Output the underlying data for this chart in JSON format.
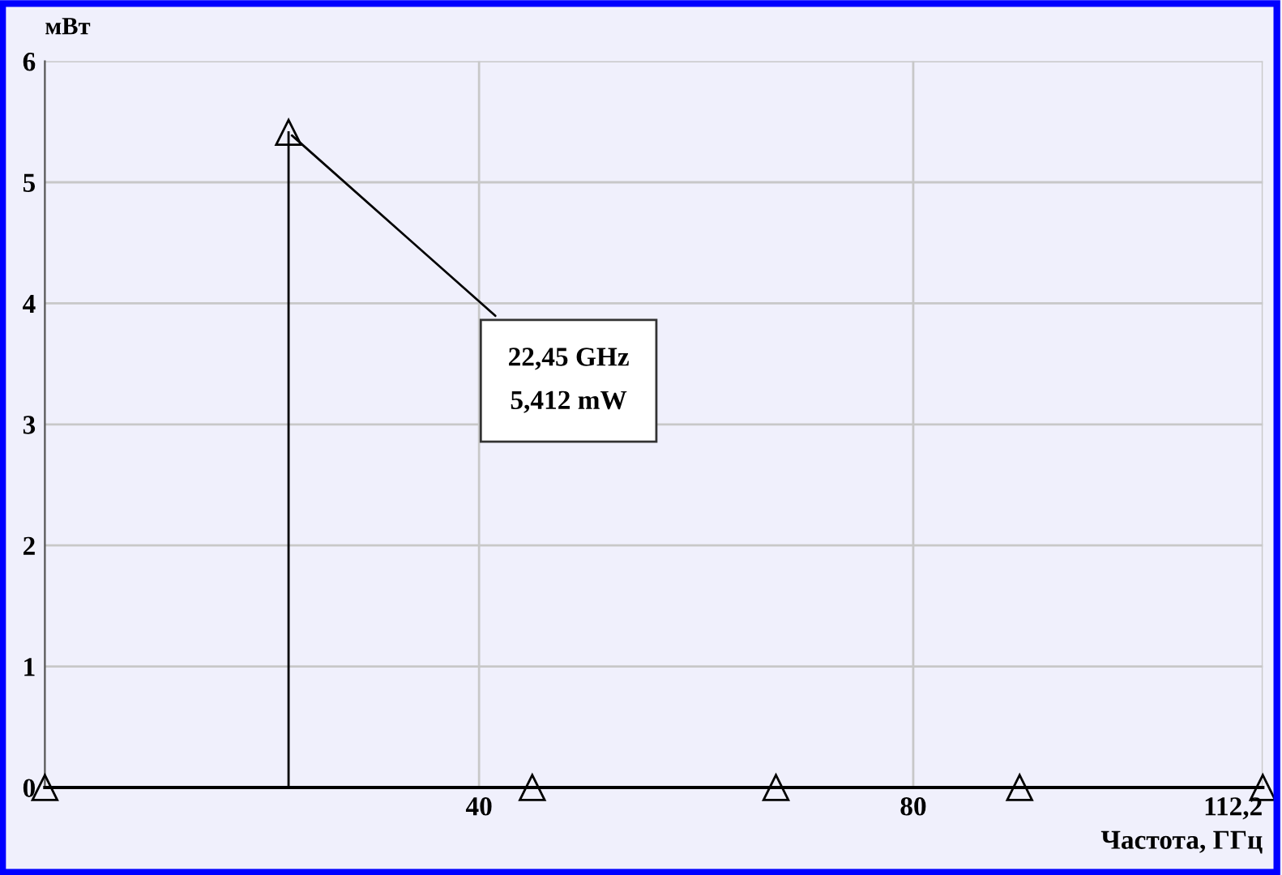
{
  "chart_data": {
    "type": "lollipop",
    "x": [
      0,
      22.45,
      44.9,
      67.35,
      89.8,
      112.2
    ],
    "values": [
      0,
      5.412,
      0,
      0,
      0,
      0
    ],
    "color": "#000000",
    "marker": "triangle",
    "xlim": [
      0,
      112.2
    ],
    "ylim": [
      0,
      6
    ],
    "xticks": [
      40,
      80,
      {
        "value": 112.2,
        "label": "112,2"
      }
    ],
    "yticks": [
      0,
      1,
      2,
      3,
      4,
      5,
      6
    ],
    "grid": true,
    "xlabel": "Частота, ГГц",
    "ylabel": "мВт",
    "annotations": [
      {
        "text": "22,45 GHz\n5,412 mW",
        "x": 22.45,
        "y": 5.412
      }
    ]
  }
}
